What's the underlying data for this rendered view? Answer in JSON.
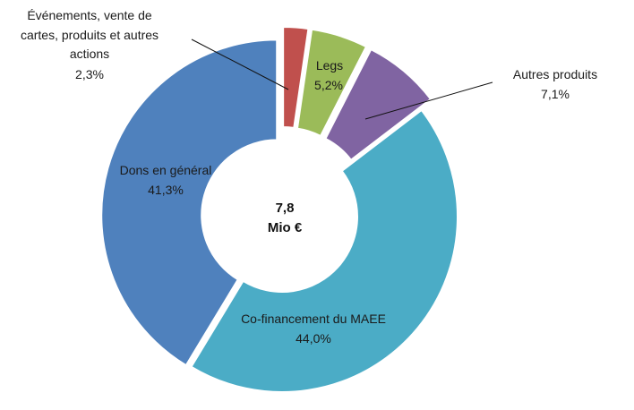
{
  "chart_data": {
    "type": "pie",
    "center_label": [
      "7,8",
      "Mio €"
    ],
    "slices": [
      {
        "label_lines": [
          "Événements, vente de",
          "cartes, produits et autres",
          "actions"
        ],
        "value_text": "2,3%",
        "value": 2.3,
        "color": "#c0504d"
      },
      {
        "label_lines": [
          "Legs"
        ],
        "value_text": "5,2%",
        "value": 5.2,
        "color": "#9bbb59"
      },
      {
        "label_lines": [
          "Autres produits"
        ],
        "value_text": "7,1%",
        "value": 7.1,
        "color": "#8064a2"
      },
      {
        "label_lines": [
          "Co-financement du MAEE"
        ],
        "value_text": "44,0%",
        "value": 44.0,
        "color": "#4bacc6"
      },
      {
        "label_lines": [
          "Dons en général"
        ],
        "value_text": "41,3%",
        "value": 41.3,
        "color": "#4f81bd"
      }
    ]
  }
}
